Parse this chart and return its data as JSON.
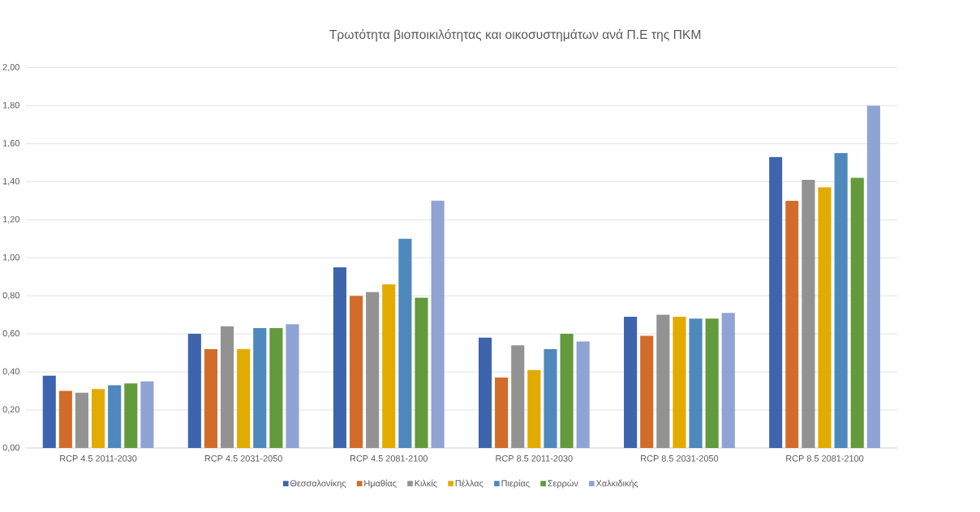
{
  "chart_data": {
    "type": "bar",
    "title": "Τρωτότητα βιοποικιλότητας και οικοσυστημάτων ανά Π.Ε της ΠΚΜ",
    "categories": [
      "RCP 4.5 2011-2030",
      "RCP 4.5 2031-2050",
      "RCP 4.5 2081-2100",
      "RCP 8.5 2011-2030",
      "RCP 8.5 2031-2050",
      "RCP 8.5 2081-2100"
    ],
    "series": [
      {
        "name": "Θεσσαλονίκης",
        "color": "#3e64ad",
        "values": [
          0.38,
          0.6,
          0.95,
          0.58,
          0.69,
          1.53
        ]
      },
      {
        "name": "Ημαθίας",
        "color": "#d26c2a",
        "values": [
          0.3,
          0.52,
          0.8,
          0.37,
          0.59,
          1.3
        ]
      },
      {
        "name": "Κιλκίς",
        "color": "#929292",
        "values": [
          0.29,
          0.64,
          0.82,
          0.54,
          0.7,
          1.41
        ]
      },
      {
        "name": "Πέλλας",
        "color": "#e2ab00",
        "values": [
          0.31,
          0.52,
          0.86,
          0.41,
          0.69,
          1.37
        ]
      },
      {
        "name": "Πιερίας",
        "color": "#4e88bc",
        "values": [
          0.33,
          0.63,
          1.1,
          0.52,
          0.68,
          1.55
        ]
      },
      {
        "name": "Σερρών",
        "color": "#639a3d",
        "values": [
          0.34,
          0.63,
          0.79,
          0.6,
          0.68,
          1.42
        ]
      },
      {
        "name": "Χαλκιδικής",
        "color": "#8fa3d4",
        "values": [
          0.35,
          0.65,
          1.3,
          0.56,
          0.71,
          1.8
        ]
      }
    ],
    "ylim": [
      0,
      2
    ],
    "yticks": [
      {
        "value": 0,
        "label": "0,00"
      },
      {
        "value": 0.2,
        "label": "0,20"
      },
      {
        "value": 0.4,
        "label": "0,40"
      },
      {
        "value": 0.6,
        "label": "0,60"
      },
      {
        "value": 0.8,
        "label": "0,80"
      },
      {
        "value": 1.0,
        "label": "1,00"
      },
      {
        "value": 1.2,
        "label": "1,20"
      },
      {
        "value": 1.4,
        "label": "1,40"
      },
      {
        "value": 1.6,
        "label": "1,60"
      },
      {
        "value": 1.8,
        "label": "1,80"
      },
      {
        "value": 2.0,
        "label": "2,00"
      }
    ],
    "grid": "y",
    "legend": "bottom"
  }
}
